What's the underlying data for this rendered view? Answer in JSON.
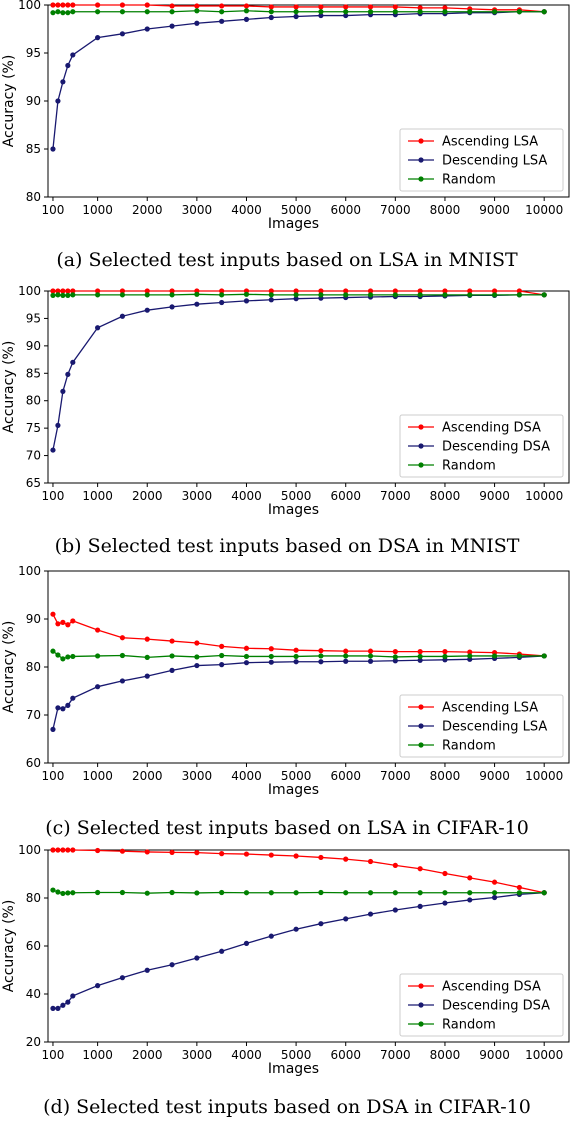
{
  "chart_data": [
    {
      "type": "line",
      "caption": "(a) Selected test inputs based on LSA in MNIST",
      "xlabel": "Images",
      "ylabel": "Accuracy (%)",
      "xlim": [
        0,
        10500
      ],
      "ylim": [
        80,
        100
      ],
      "xticks": [
        100,
        1000,
        2000,
        3000,
        4000,
        5000,
        6000,
        7000,
        8000,
        9000,
        10000
      ],
      "yticks": [
        80,
        85,
        90,
        95,
        100
      ],
      "grid": false,
      "legend_position": "center-right",
      "x": [
        100,
        200,
        300,
        400,
        500,
        1000,
        1500,
        2000,
        2500,
        3000,
        3500,
        4000,
        4500,
        5000,
        5500,
        6000,
        6500,
        7000,
        7500,
        8000,
        8500,
        9000,
        9500,
        10000
      ],
      "series": [
        {
          "name": "Ascending LSA",
          "color": "#ff0000",
          "values": [
            100,
            100,
            100,
            100,
            100,
            100,
            100,
            100,
            99.9,
            99.9,
            99.9,
            99.9,
            99.8,
            99.8,
            99.8,
            99.8,
            99.8,
            99.8,
            99.7,
            99.7,
            99.6,
            99.5,
            99.5,
            99.3
          ]
        },
        {
          "name": "Descending LSA",
          "color": "#191970",
          "values": [
            85,
            90,
            92,
            93.7,
            94.8,
            96.6,
            97,
            97.5,
            97.8,
            98.1,
            98.3,
            98.5,
            98.7,
            98.8,
            98.9,
            98.9,
            99,
            99,
            99.1,
            99.1,
            99.2,
            99.2,
            99.3,
            99.3
          ]
        },
        {
          "name": "Random",
          "color": "#008000",
          "values": [
            99.2,
            99.3,
            99.2,
            99.2,
            99.3,
            99.3,
            99.3,
            99.3,
            99.3,
            99.4,
            99.3,
            99.4,
            99.3,
            99.3,
            99.3,
            99.3,
            99.3,
            99.3,
            99.3,
            99.3,
            99.3,
            99.3,
            99.3,
            99.3
          ]
        }
      ]
    },
    {
      "type": "line",
      "caption": "(b) Selected test inputs based on DSA in MNIST",
      "xlabel": "Images",
      "ylabel": "Accuracy (%)",
      "xlim": [
        0,
        10500
      ],
      "ylim": [
        65,
        100
      ],
      "xticks": [
        100,
        1000,
        2000,
        3000,
        4000,
        5000,
        6000,
        7000,
        8000,
        9000,
        10000
      ],
      "yticks": [
        65,
        70,
        75,
        80,
        85,
        90,
        95,
        100
      ],
      "grid": false,
      "legend_position": "center-right",
      "x": [
        100,
        200,
        300,
        400,
        500,
        1000,
        1500,
        2000,
        2500,
        3000,
        3500,
        4000,
        4500,
        5000,
        5500,
        6000,
        6500,
        7000,
        7500,
        8000,
        8500,
        9000,
        9500,
        10000
      ],
      "series": [
        {
          "name": "Ascending DSA",
          "color": "#ff0000",
          "values": [
            100,
            100,
            100,
            100,
            100,
            100,
            100,
            100,
            100,
            100,
            100,
            100,
            100,
            100,
            100,
            100,
            100,
            100,
            100,
            100,
            100,
            100,
            100,
            99.3
          ]
        },
        {
          "name": "Descending DSA",
          "color": "#191970",
          "values": [
            71,
            75.5,
            81.7,
            84.8,
            87,
            93.3,
            95.4,
            96.5,
            97.1,
            97.6,
            97.9,
            98.2,
            98.4,
            98.6,
            98.7,
            98.8,
            98.9,
            99,
            99,
            99.1,
            99.2,
            99.2,
            99.3,
            99.3
          ]
        },
        {
          "name": "Random",
          "color": "#008000",
          "values": [
            99.2,
            99.3,
            99.2,
            99.2,
            99.3,
            99.3,
            99.3,
            99.3,
            99.3,
            99.4,
            99.3,
            99.4,
            99.3,
            99.3,
            99.3,
            99.3,
            99.3,
            99.3,
            99.3,
            99.3,
            99.3,
            99.3,
            99.3,
            99.3
          ]
        }
      ]
    },
    {
      "type": "line",
      "caption": "(c) Selected test inputs based on LSA in CIFAR-10",
      "xlabel": "Images",
      "ylabel": "Accuracy (%)",
      "xlim": [
        0,
        10500
      ],
      "ylim": [
        60,
        100
      ],
      "xticks": [
        100,
        1000,
        2000,
        3000,
        4000,
        5000,
        6000,
        7000,
        8000,
        9000,
        10000
      ],
      "yticks": [
        60,
        70,
        80,
        90,
        100
      ],
      "grid": false,
      "legend_position": "lower-right",
      "x": [
        100,
        200,
        300,
        400,
        500,
        1000,
        1500,
        2000,
        2500,
        3000,
        3500,
        4000,
        4500,
        5000,
        5500,
        6000,
        6500,
        7000,
        7500,
        8000,
        8500,
        9000,
        9500,
        10000
      ],
      "series": [
        {
          "name": "Ascending LSA",
          "color": "#ff0000",
          "values": [
            91,
            89,
            89.3,
            88.8,
            89.6,
            87.7,
            86.1,
            85.8,
            85.4,
            85,
            84.3,
            83.9,
            83.8,
            83.5,
            83.4,
            83.3,
            83.3,
            83.2,
            83.2,
            83.2,
            83.1,
            83,
            82.7,
            82.3
          ]
        },
        {
          "name": "Descending LSA",
          "color": "#191970",
          "values": [
            67,
            71.5,
            71.3,
            72,
            73.5,
            75.9,
            77.1,
            78.1,
            79.3,
            80.3,
            80.5,
            80.9,
            81,
            81.1,
            81.1,
            81.2,
            81.2,
            81.3,
            81.4,
            81.5,
            81.6,
            81.8,
            82,
            82.3
          ]
        },
        {
          "name": "Random",
          "color": "#008000",
          "values": [
            83.3,
            82.5,
            81.7,
            82.1,
            82.2,
            82.3,
            82.4,
            82,
            82.3,
            82.1,
            82.4,
            82.2,
            82.2,
            82.2,
            82.3,
            82.3,
            82.3,
            82.1,
            82.2,
            82.2,
            82.3,
            82.3,
            82.3,
            82.3
          ]
        }
      ]
    },
    {
      "type": "line",
      "caption": "(d) Selected test inputs based on DSA in CIFAR-10",
      "xlabel": "Images",
      "ylabel": "Accuracy (%)",
      "xlim": [
        0,
        10500
      ],
      "ylim": [
        20,
        100
      ],
      "xticks": [
        100,
        1000,
        2000,
        3000,
        4000,
        5000,
        6000,
        7000,
        8000,
        9000,
        10000
      ],
      "yticks": [
        20,
        40,
        60,
        80,
        100
      ],
      "grid": false,
      "legend_position": "lower-right",
      "x": [
        100,
        200,
        300,
        400,
        500,
        1000,
        1500,
        2000,
        2500,
        3000,
        3500,
        4000,
        4500,
        5000,
        5500,
        6000,
        6500,
        7000,
        7500,
        8000,
        8500,
        9000,
        9500,
        10000
      ],
      "series": [
        {
          "name": "Ascending DSA",
          "color": "#ff0000",
          "values": [
            100,
            100,
            100,
            100,
            100,
            99.8,
            99.5,
            99.2,
            99,
            98.9,
            98.5,
            98.3,
            97.9,
            97.5,
            96.9,
            96.2,
            95.2,
            93.6,
            92.2,
            90.2,
            88.4,
            86.6,
            84.4,
            82.2
          ]
        },
        {
          "name": "Descending DSA",
          "color": "#191970",
          "values": [
            34,
            34,
            35.3,
            36.6,
            39.2,
            43.5,
            46.8,
            49.9,
            52.2,
            55,
            57.8,
            61.1,
            64.1,
            67,
            69.3,
            71.3,
            73.3,
            75,
            76.5,
            77.9,
            79.2,
            80.2,
            81.5,
            82.2
          ]
        },
        {
          "name": "Random",
          "color": "#008000",
          "values": [
            83.3,
            82.5,
            81.9,
            82.1,
            82.2,
            82.3,
            82.3,
            82,
            82.3,
            82.1,
            82.3,
            82.2,
            82.2,
            82.2,
            82.3,
            82.2,
            82.2,
            82.2,
            82.2,
            82.2,
            82.2,
            82.2,
            82.2,
            82.2
          ]
        }
      ]
    }
  ]
}
